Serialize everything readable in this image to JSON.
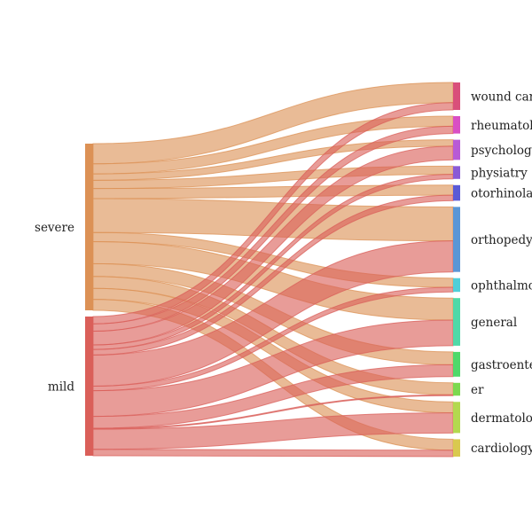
{
  "chart_data": {
    "type": "sankey",
    "title": "",
    "sources": [
      {
        "name": "severe",
        "color": "#dc9155"
      },
      {
        "name": "mild",
        "color": "#da5f59"
      }
    ],
    "targets": [
      {
        "name": "wound care",
        "color": "#d94f7a"
      },
      {
        "name": "rheumatology",
        "color": "#d94fc4"
      },
      {
        "name": "psychology",
        "color": "#b85ad6"
      },
      {
        "name": "physiatry",
        "color": "#8a5ad6"
      },
      {
        "name": "otorhinolaryngology",
        "color": "#5a5ad6"
      },
      {
        "name": "orthopedy",
        "color": "#5a96d6"
      },
      {
        "name": "ophthalmology",
        "color": "#4fcfd9"
      },
      {
        "name": "general",
        "color": "#4fd9a8"
      },
      {
        "name": "gastroenterology",
        "color": "#4fd96a"
      },
      {
        "name": "er",
        "color": "#7cd94f"
      },
      {
        "name": "dermatology",
        "color": "#b3d94f"
      },
      {
        "name": "cardiology",
        "color": "#d9c94f"
      }
    ],
    "links": [
      {
        "source": "severe",
        "target": "wound care",
        "value": 22
      },
      {
        "source": "severe",
        "target": "rheumatology",
        "value": 11
      },
      {
        "source": "severe",
        "target": "psychology",
        "value": 7
      },
      {
        "source": "severe",
        "target": "physiatry",
        "value": 9
      },
      {
        "source": "severe",
        "target": "otorhinolaryngology",
        "value": 11
      },
      {
        "source": "severe",
        "target": "orthopedy",
        "value": 37
      },
      {
        "source": "severe",
        "target": "ophthalmology",
        "value": 10
      },
      {
        "source": "severe",
        "target": "general",
        "value": 24
      },
      {
        "source": "severe",
        "target": "gastroenterology",
        "value": 14
      },
      {
        "source": "severe",
        "target": "er",
        "value": 13
      },
      {
        "source": "severe",
        "target": "dermatology",
        "value": 12
      },
      {
        "source": "severe",
        "target": "cardiology",
        "value": 12
      },
      {
        "source": "mild",
        "target": "wound care",
        "value": 8
      },
      {
        "source": "mild",
        "target": "rheumatology",
        "value": 8
      },
      {
        "source": "mild",
        "target": "psychology",
        "value": 15
      },
      {
        "source": "mild",
        "target": "physiatry",
        "value": 5
      },
      {
        "source": "mild",
        "target": "otorhinolaryngology",
        "value": 6
      },
      {
        "source": "mild",
        "target": "orthopedy",
        "value": 34
      },
      {
        "source": "mild",
        "target": "ophthalmology",
        "value": 5
      },
      {
        "source": "mild",
        "target": "general",
        "value": 28
      },
      {
        "source": "mild",
        "target": "gastroenterology",
        "value": 13
      },
      {
        "source": "mild",
        "target": "er",
        "value": 1
      },
      {
        "source": "mild",
        "target": "dermatology",
        "value": 22
      },
      {
        "source": "mild",
        "target": "cardiology",
        "value": 7
      }
    ]
  }
}
